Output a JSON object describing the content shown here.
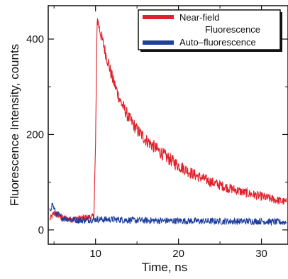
{
  "chart_data": {
    "type": "line",
    "xlabel": "Time, ns",
    "ylabel": "Fluorescence Intensity, counts",
    "xlim": [
      4.3,
      33.2
    ],
    "ylim": [
      -30,
      470
    ],
    "xticks": [
      10,
      20,
      30
    ],
    "yticks": [
      0,
      200,
      400
    ],
    "grid": false,
    "legend_position": "top-right",
    "series": [
      {
        "name": "Near-field",
        "name_line2": "Fluorescence",
        "color": "#e0202a",
        "x": [
          4.5,
          5.0,
          6.0,
          7.0,
          8.0,
          9.0,
          9.8,
          10.0,
          10.2,
          10.5,
          11,
          12,
          13,
          14,
          15,
          16,
          18,
          20,
          22,
          24,
          26,
          28,
          30,
          32,
          33
        ],
        "y": [
          22,
          35,
          25,
          22,
          24,
          26,
          28,
          180,
          445,
          420,
          385,
          320,
          270,
          235,
          210,
          190,
          160,
          135,
          115,
          100,
          88,
          78,
          70,
          62,
          58
        ]
      },
      {
        "name": "Auto–fluorescence",
        "color": "#1f3f9f",
        "x": [
          4.5,
          4.8,
          5.2,
          6.0,
          8.0,
          10.0,
          12.0,
          15.0,
          20.0,
          25.0,
          30.0,
          33.0
        ],
        "y": [
          40,
          55,
          35,
          25,
          20,
          22,
          22,
          20,
          19,
          18,
          18,
          16
        ]
      }
    ]
  }
}
